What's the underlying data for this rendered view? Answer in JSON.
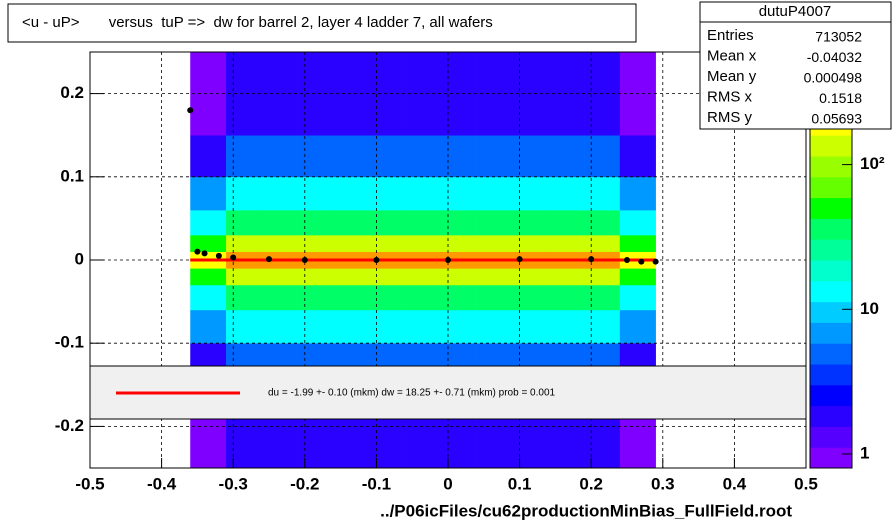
{
  "chart_data": {
    "type": "histogram2d",
    "title": "<u - uP>       versus  tuP =>  dw for barrel 2, layer 4 ladder 7, all wafers",
    "x_label": "../P06icFiles/cu62productionMinBias_FullField.root",
    "xlim": [
      -0.5,
      0.5
    ],
    "ylim": [
      -0.25,
      0.25
    ],
    "xticks": [
      -0.5,
      -0.4,
      -0.3,
      -0.2,
      -0.1,
      0,
      0.1,
      0.2,
      0.3,
      0.4,
      0.5
    ],
    "yticks": [
      -0.2,
      -0.1,
      0,
      0.1,
      0.2
    ],
    "grid": true,
    "xbins": [
      -0.36,
      -0.31,
      -0.26,
      -0.21,
      -0.16,
      -0.11,
      -0.06,
      -0.01,
      0.04,
      0.09,
      0.14,
      0.19,
      0.24,
      0.29
    ],
    "ybins": [
      -0.25,
      -0.15,
      -0.1,
      -0.06,
      -0.03,
      -0.01,
      0.01,
      0.03,
      0.06,
      0.1,
      0.15,
      0.25
    ],
    "counts": [
      [
        1,
        2,
        6,
        15,
        50,
        200,
        50,
        15,
        6,
        2,
        1
      ],
      [
        2,
        5,
        15,
        40,
        120,
        400,
        120,
        40,
        15,
        5,
        2
      ],
      [
        2,
        5,
        15,
        40,
        120,
        400,
        120,
        40,
        15,
        5,
        2
      ],
      [
        2,
        5,
        15,
        40,
        120,
        400,
        120,
        40,
        15,
        5,
        2
      ],
      [
        2,
        5,
        15,
        40,
        120,
        400,
        120,
        40,
        15,
        5,
        2
      ],
      [
        2,
        5,
        15,
        40,
        120,
        400,
        120,
        40,
        15,
        5,
        2
      ],
      [
        2,
        5,
        15,
        40,
        120,
        400,
        120,
        40,
        15,
        5,
        2
      ],
      [
        2,
        5,
        15,
        40,
        120,
        400,
        120,
        40,
        15,
        5,
        2
      ],
      [
        2,
        5,
        15,
        40,
        120,
        400,
        120,
        40,
        15,
        5,
        2
      ],
      [
        2,
        5,
        15,
        40,
        120,
        400,
        120,
        40,
        15,
        5,
        2
      ],
      [
        2,
        5,
        15,
        40,
        120,
        400,
        120,
        40,
        15,
        5,
        2
      ],
      [
        2,
        5,
        15,
        40,
        120,
        400,
        120,
        40,
        15,
        5,
        2
      ],
      [
        1,
        2,
        6,
        15,
        50,
        200,
        50,
        15,
        6,
        2,
        1
      ]
    ],
    "zlim": [
      0.8,
      600
    ],
    "zlog": true,
    "zticks": [
      1,
      10,
      {
        "value": 100,
        "label": "10²"
      }
    ],
    "palette": [
      "#7f00ff",
      "#5500ff",
      "#2a00ff",
      "#0000ff",
      "#0033ff",
      "#0066ff",
      "#0099ff",
      "#00ccff",
      "#00ffff",
      "#00ffcc",
      "#00ff99",
      "#00ff66",
      "#00ff00",
      "#66ff00",
      "#99ff00",
      "#ccff00",
      "#ffff00",
      "#ffcc00",
      "#ff9900",
      "#ff0000"
    ],
    "profile": {
      "color": "#000000",
      "x": [
        -0.36,
        -0.35,
        -0.34,
        -0.32,
        -0.3,
        -0.25,
        -0.2,
        -0.1,
        0,
        0.1,
        0.2,
        0.25,
        0.27,
        0.29
      ],
      "values": [
        0.18,
        0.01,
        0.008,
        0.005,
        0.003,
        0.001,
        0,
        0,
        0,
        0.001,
        0.001,
        0,
        -0.002,
        -0.002
      ]
    },
    "fit": {
      "color": "#ff0000",
      "x": [
        -0.36,
        0.29
      ],
      "values": [
        0,
        0
      ],
      "label": "du =   -1.99 +-  0.10 (mkm) dw =   18.25 +-  0.71 (mkm) prob = 0.001"
    },
    "stats": {
      "name": "dutuP4007",
      "rows": [
        {
          "label": "Entries",
          "value": 713052
        },
        {
          "label": "Mean x",
          "value": -0.04032
        },
        {
          "label": "Mean y",
          "value": 0.000498
        },
        {
          "label": "RMS x",
          "value": 0.1518
        },
        {
          "label": "RMS y",
          "value": 0.05693
        }
      ]
    }
  }
}
